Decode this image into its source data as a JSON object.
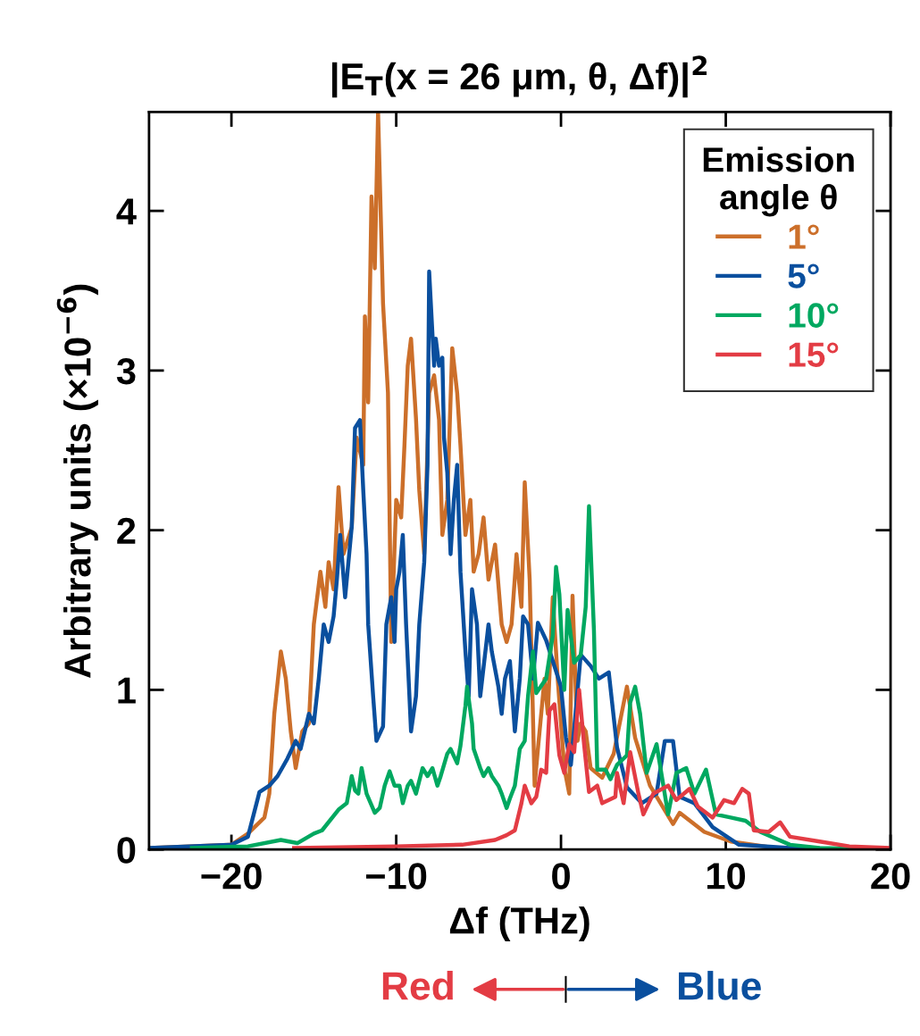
{
  "chart_data": {
    "type": "line",
    "title": "|E$_{T}$(x = 26 μm, θ, Δf)|$^{2}$",
    "xlabel": "Δf (THz)",
    "ylabel": "Arbitrary units (×10$^{−6}$)",
    "legend_title": "Emission\nangle θ",
    "annotations": [
      "Red",
      "Blue"
    ],
    "xlim": [
      -25,
      20
    ],
    "xticks": [
      {
        "value": -20,
        "label": "−20"
      },
      {
        "value": -10,
        "label": "−10"
      },
      0,
      10,
      20
    ],
    "ylim": [
      0,
      4.62
    ],
    "yticks": [
      0,
      1,
      2,
      3,
      4
    ],
    "grid": false,
    "legend": "top right",
    "marker": "none",
    "line_style": "solid",
    "series": [
      {
        "name": "1°",
        "color": "#cc6f2a",
        "x": [
          -25,
          -20,
          -19,
          -18,
          -17.7,
          -17.4,
          -17.0,
          -16.7,
          -16.4,
          -16.1,
          -15.7,
          -15.3,
          -15.0,
          -14.6,
          -14.3,
          -14.1,
          -13.8,
          -13.5,
          -13.2,
          -12.7,
          -12.4,
          -12.0,
          -11.9,
          -11.7,
          -11.5,
          -11.3,
          -11.1,
          -10.8,
          -10.5,
          -10.3,
          -10.0,
          -9.7,
          -9.5,
          -9.3,
          -9.1,
          -8.8,
          -8.6,
          -8.3,
          -8.0,
          -7.7,
          -7.4,
          -7.2,
          -6.9,
          -6.6,
          -6.3,
          -6.1,
          -5.8,
          -5.5,
          -5.3,
          -5.0,
          -4.7,
          -4.4,
          -4.0,
          -3.6,
          -3.3,
          -3.0,
          -2.7,
          -2.4,
          -2.2,
          -1.9,
          -1.6,
          -1.4,
          -1.0,
          -0.8,
          -0.5,
          -0.2,
          0.2,
          0.5,
          0.7,
          1.0,
          1.2,
          1.5,
          1.8,
          2.5,
          3.2,
          4.0,
          4.5,
          5.4,
          6.8,
          7.2,
          8.7,
          10.3,
          13,
          15,
          20
        ],
        "values": [
          0.01,
          0.03,
          0.1,
          0.2,
          0.35,
          0.85,
          1.24,
          1.07,
          0.74,
          0.51,
          0.74,
          0.79,
          1.41,
          1.74,
          1.52,
          1.8,
          1.63,
          2.27,
          1.85,
          2.02,
          2.58,
          2.41,
          3.34,
          2.8,
          4.09,
          3.64,
          4.62,
          3.42,
          2.86,
          1.3,
          2.19,
          2.08,
          2.53,
          3.03,
          3.2,
          2.7,
          2.25,
          1.85,
          2.86,
          2.97,
          2.69,
          1.97,
          2.19,
          3.14,
          2.86,
          2.53,
          1.97,
          2.19,
          1.74,
          1.85,
          2.08,
          1.69,
          1.91,
          1.41,
          1.3,
          1.41,
          1.85,
          1.52,
          2.3,
          1.69,
          0.4,
          0.63,
          1.07,
          0.85,
          1.58,
          1.07,
          0.51,
          0.35,
          1.59,
          0.68,
          0.79,
          0.74,
          0.51,
          0.45,
          0.6,
          1.02,
          0.7,
          0.4,
          0.16,
          0.23,
          0.11,
          0.05,
          0.01,
          0.005,
          0
        ]
      },
      {
        "name": "5°",
        "color": "#0a4f9e",
        "x": [
          -25,
          -20,
          -19,
          -18.3,
          -17.7,
          -17.2,
          -16.6,
          -16.1,
          -15.8,
          -15.3,
          -15.0,
          -14.7,
          -14.4,
          -14.1,
          -13.8,
          -13.6,
          -13.4,
          -13.1,
          -12.7,
          -12.5,
          -12.2,
          -12.0,
          -11.8,
          -11.7,
          -11.4,
          -11.2,
          -10.8,
          -10.6,
          -10.3,
          -10.1,
          -10.0,
          -9.8,
          -9.6,
          -9.4,
          -9.1,
          -8.8,
          -8.6,
          -8.3,
          -8.1,
          -8.0,
          -7.7,
          -7.6,
          -7.4,
          -7.2,
          -7.1,
          -6.9,
          -6.7,
          -6.5,
          -6.3,
          -6.1,
          -5.8,
          -5.6,
          -5.4,
          -5.1,
          -4.9,
          -4.4,
          -4.2,
          -3.8,
          -3.6,
          -3.4,
          -3.1,
          -2.8,
          -2.5,
          -2.3,
          -2.0,
          -1.7,
          -1.4,
          -0.9,
          0,
          0.3,
          0.6,
          1.2,
          1.8,
          2.3,
          2.9,
          3.4,
          4.0,
          4.9,
          5.8,
          6.3,
          6.8,
          7.2,
          8.1,
          9.2,
          10.8,
          13.9,
          16,
          20
        ],
        "values": [
          0.01,
          0.03,
          0.08,
          0.36,
          0.4,
          0.46,
          0.57,
          0.68,
          0.63,
          0.85,
          0.79,
          1.07,
          1.41,
          1.3,
          1.46,
          1.69,
          1.97,
          1.58,
          2.02,
          2.64,
          2.69,
          2.25,
          1.85,
          1.41,
          0.96,
          0.68,
          0.77,
          1.41,
          1.58,
          1.3,
          1.63,
          1.74,
          1.97,
          1.41,
          0.74,
          0.96,
          1.41,
          1.8,
          2.41,
          3.62,
          3.03,
          3.2,
          3.03,
          3.08,
          2.58,
          2.36,
          1.85,
          2.19,
          2.41,
          1.74,
          1.24,
          0.96,
          1.63,
          1.41,
          0.96,
          1.41,
          1.24,
          1.02,
          0.85,
          1.07,
          1.18,
          0.74,
          1.07,
          1.46,
          1.41,
          1.07,
          1.42,
          1.31,
          1.02,
          0.7,
          0.53,
          1.22,
          1.15,
          1.07,
          1.11,
          0.64,
          0.39,
          0.29,
          0.35,
          0.68,
          0.68,
          0.33,
          0.29,
          0.14,
          0.03,
          0.01,
          0.005,
          0
        ]
      },
      {
        "name": "10°",
        "color": "#00a860",
        "x": [
          -22.4,
          -19,
          -17,
          -16,
          -15,
          -14.5,
          -13.5,
          -13.0,
          -12.7,
          -12.5,
          -12.3,
          -12.1,
          -11.8,
          -11.3,
          -11.0,
          -10.7,
          -10.4,
          -10.1,
          -9.8,
          -9.6,
          -9.3,
          -9.1,
          -8.8,
          -8.4,
          -8.1,
          -7.8,
          -7.5,
          -7.3,
          -6.9,
          -6.7,
          -6.3,
          -6.1,
          -5.8,
          -5.7,
          -5.4,
          -5.3,
          -4.9,
          -4.7,
          -4.4,
          -4.2,
          -3.8,
          -3.6,
          -3.3,
          -3.1,
          -2.8,
          -2.5,
          -2.2,
          -2.0,
          -1.7,
          -1.5,
          -0.9,
          -0.5,
          -0.3,
          -0.1,
          0.2,
          0.4,
          0.8,
          1.2,
          1.5,
          1.7,
          2.0,
          2.2,
          2.7,
          3.0,
          3.4,
          4.0,
          4.2,
          4.5,
          4.8,
          5.2,
          5.8,
          6.5,
          7.0,
          7.6,
          8.1,
          8.8,
          9.4,
          10.3,
          11.2,
          12.1,
          13.9,
          15.7,
          20
        ],
        "values": [
          0.01,
          0.02,
          0.06,
          0.04,
          0.1,
          0.12,
          0.25,
          0.29,
          0.46,
          0.37,
          0.35,
          0.51,
          0.35,
          0.23,
          0.26,
          0.4,
          0.49,
          0.4,
          0.4,
          0.29,
          0.4,
          0.43,
          0.35,
          0.51,
          0.46,
          0.51,
          0.4,
          0.46,
          0.6,
          0.63,
          0.54,
          0.65,
          0.9,
          1.02,
          0.79,
          0.63,
          0.51,
          0.46,
          0.51,
          0.46,
          0.4,
          0.35,
          0.26,
          0.32,
          0.4,
          0.63,
          0.68,
          0.96,
          1.24,
          0.98,
          1.07,
          1.34,
          1.77,
          1.6,
          1.0,
          1.5,
          1.17,
          1.22,
          1.52,
          2.15,
          1.37,
          0.5,
          0.5,
          0.44,
          0.53,
          0.59,
          0.92,
          1.02,
          0.85,
          0.48,
          0.66,
          0.22,
          0.48,
          0.51,
          0.35,
          0.5,
          0.22,
          0.2,
          0.18,
          0.11,
          0.03,
          0.01,
          0
        ]
      },
      {
        "name": "15°",
        "color": "#e33c44",
        "x": [
          -16.2,
          -10,
          -6,
          -4,
          -3.3,
          -2.8,
          -2.4,
          -2.2,
          -1.8,
          -1.5,
          -1.2,
          -0.9,
          -0.7,
          -0.4,
          -0.1,
          0.2,
          0.5,
          0.8,
          1.1,
          1.4,
          1.7,
          2.2,
          2.5,
          3.3,
          3.4,
          3.8,
          4.2,
          4.7,
          5.0,
          5.6,
          6.5,
          7.0,
          7.8,
          8.3,
          9.2,
          9.9,
          10.5,
          11.0,
          11.4,
          11.7,
          12.6,
          13.3,
          13.9,
          15.7,
          17.5,
          20
        ],
        "values": [
          0.01,
          0.02,
          0.03,
          0.06,
          0.09,
          0.12,
          0.29,
          0.4,
          0.29,
          0.33,
          0.5,
          0.48,
          0.87,
          0.91,
          0.59,
          0.48,
          0.66,
          0.61,
          1.0,
          0.66,
          0.36,
          0.4,
          0.29,
          0.33,
          0.48,
          0.29,
          0.61,
          0.35,
          0.22,
          0.35,
          0.4,
          0.31,
          0.38,
          0.27,
          0.2,
          0.31,
          0.29,
          0.38,
          0.35,
          0.12,
          0.11,
          0.17,
          0.08,
          0.05,
          0.02,
          0.01
        ]
      }
    ]
  }
}
